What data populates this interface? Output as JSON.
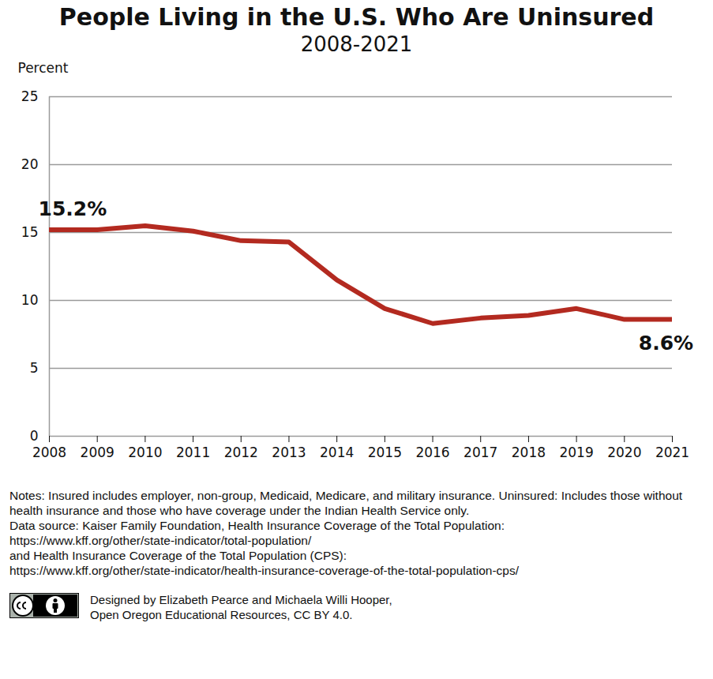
{
  "chart_data": {
    "type": "line",
    "title": "People Living in the U.S. Who Are Uninsured",
    "subtitle": "2008-2021",
    "y_label": "Percent",
    "x": [
      2008,
      2009,
      2010,
      2011,
      2012,
      2013,
      2014,
      2015,
      2016,
      2017,
      2018,
      2019,
      2020,
      2021
    ],
    "values": [
      15.2,
      15.2,
      15.5,
      15.1,
      14.4,
      14.3,
      11.5,
      9.4,
      8.3,
      8.7,
      8.9,
      9.4,
      8.6,
      8.6
    ],
    "value_labels": [
      "15.2%",
      null,
      null,
      null,
      null,
      null,
      null,
      null,
      null,
      null,
      null,
      null,
      null,
      "8.6%"
    ],
    "data_labels": true,
    "color": "#b32a20",
    "xlim": [
      2008,
      2021
    ],
    "xticks": [
      2008,
      2009,
      2010,
      2011,
      2012,
      2013,
      2014,
      2015,
      2016,
      2017,
      2018,
      2019,
      2020,
      2021
    ],
    "ylim": [
      0,
      25
    ],
    "yticks": [
      0,
      5,
      10,
      15,
      20,
      25
    ],
    "grid": true,
    "notes": [
      "Notes: Insured includes employer, non-group, Medicaid, Medicare, and military insurance. Uninsured: Includes those without health insurance and those who have coverage under the Indian Health Service only.",
      "Data source: Kaiser Family Foundation,  Health Insurance Coverage of the Total Population:",
      "https://www.kff.org/other/state-indicator/total-population/",
      "and Health Insurance Coverage of the Total Population (CPS):",
      "https://www.kff.org/other/state-indicator/health-insurance-coverage-of-the-total-population-cps/"
    ],
    "credit": [
      "Designed by Elizabeth Pearce and Michaela Willi Hooper,",
      "Open Oregon Educational Resources, CC BY 4.0."
    ]
  }
}
